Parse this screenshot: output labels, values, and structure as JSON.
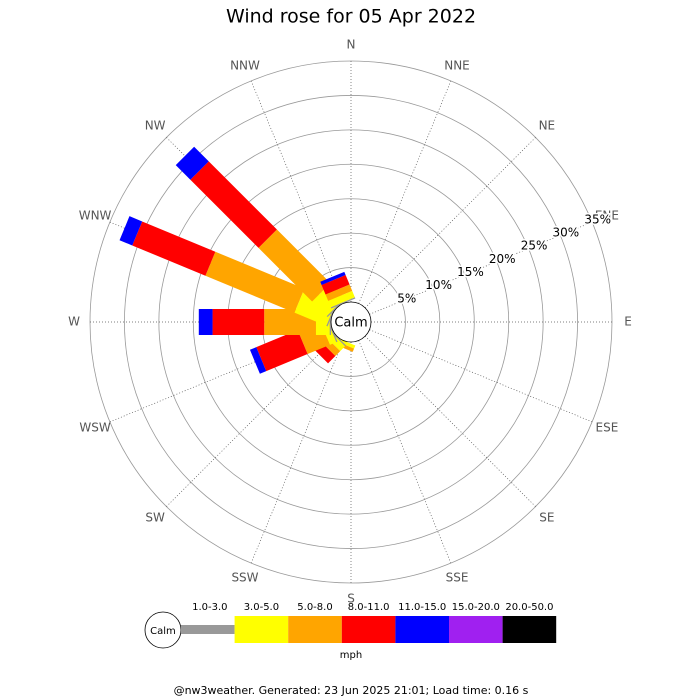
{
  "chart_data": {
    "type": "wind-rose",
    "title": "Wind rose for 05 Apr 2022",
    "directions": [
      "N",
      "NNE",
      "NE",
      "ENE",
      "E",
      "ESE",
      "SE",
      "SSE",
      "S",
      "SSW",
      "SW",
      "WSW",
      "W",
      "WNW",
      "NW",
      "NNW"
    ],
    "rlim": [
      0,
      35
    ],
    "rticks": [
      {
        "value": 5,
        "label": "5%"
      },
      {
        "value": 10,
        "label": "10%"
      },
      {
        "value": 15,
        "label": "15%"
      },
      {
        "value": 20,
        "label": "20%"
      },
      {
        "value": 25,
        "label": "25%"
      },
      {
        "value": 30,
        "label": "30%"
      },
      {
        "value": 35,
        "label": "35%"
      }
    ],
    "calm_label": "Calm",
    "units": "mph",
    "series": [
      {
        "name": "1.0-3.0",
        "color": "#999999",
        "values": [
          0,
          0,
          0,
          0,
          0,
          0,
          0,
          0,
          0,
          0,
          0.2,
          0.2,
          0.2,
          0.2,
          0.2,
          0.2
        ]
      },
      {
        "name": "3.0-5.0",
        "color": "#ffff00",
        "values": [
          0,
          0,
          0,
          0,
          0,
          0,
          0,
          0,
          0,
          0.5,
          1,
          1,
          2,
          5,
          3,
          1
        ]
      },
      {
        "name": "5.0-8.0",
        "color": "#ffa500",
        "values": [
          0,
          0,
          0,
          0,
          0,
          0,
          0,
          0,
          0,
          0.5,
          1,
          3.5,
          7.5,
          14,
          11,
          1
        ]
      },
      {
        "name": "8.0-11.0",
        "color": "#ff0000",
        "values": [
          0,
          0,
          0,
          0,
          0,
          0,
          0,
          0,
          0,
          0,
          1.5,
          6.5,
          7.5,
          11.5,
          14,
          1.5
        ]
      },
      {
        "name": "11.0-15.0",
        "color": "#0000ff",
        "values": [
          0,
          0,
          0,
          0,
          0,
          0,
          0,
          0,
          0,
          0,
          0,
          1,
          2,
          2,
          3,
          0.5
        ]
      },
      {
        "name": "15.0-20.0",
        "color": "#a020f0",
        "values": [
          0,
          0,
          0,
          0,
          0,
          0,
          0,
          0,
          0,
          0,
          0,
          0,
          0,
          0,
          0,
          0
        ]
      },
      {
        "name": "20.0-50.0",
        "color": "#000000",
        "values": [
          0,
          0,
          0,
          0,
          0,
          0,
          0,
          0,
          0,
          0,
          0,
          0,
          0,
          0,
          0,
          0
        ]
      }
    ]
  },
  "footer": "@nw3weather. Generated: 23 Jun 2025 21:01; Load time: 0.16 s"
}
